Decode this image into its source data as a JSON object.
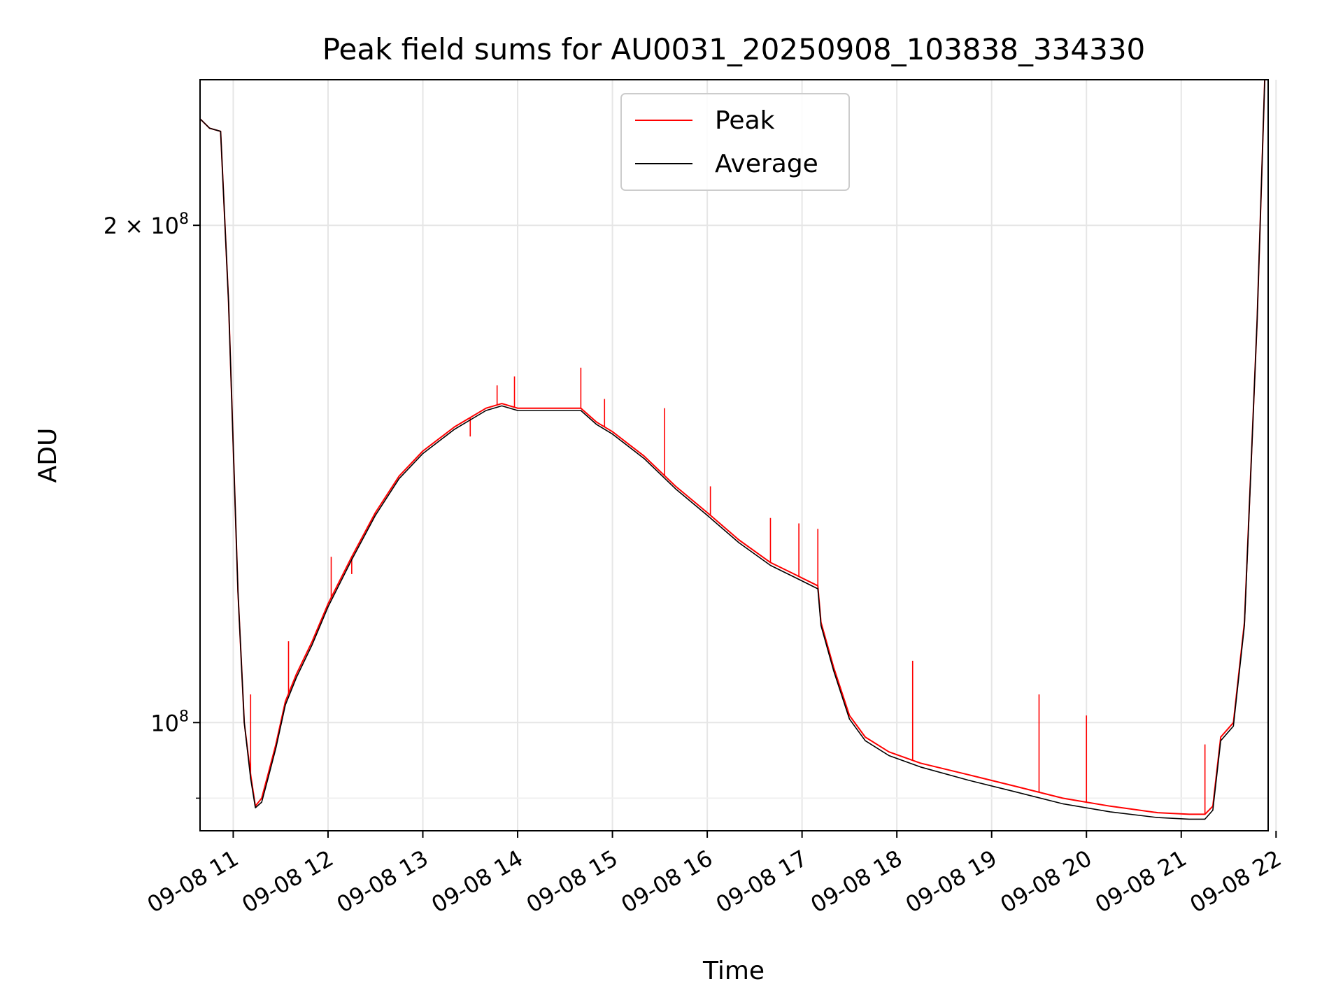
{
  "chart_data": {
    "type": "line",
    "title": "Peak field sums for AU0031_20250908_103838_334330",
    "xlabel": "Time",
    "ylabel": "ADU",
    "xlim": [
      "2025-09-08T10:39",
      "2025-09-08T21:55"
    ],
    "ylim": [
      86000000,
      245000000
    ],
    "yscale": "log",
    "grid": true,
    "legend_position": "top-center",
    "x_ticks": [
      "09-08 11",
      "09-08 12",
      "09-08 13",
      "09-08 14",
      "09-08 15",
      "09-08 16",
      "09-08 17",
      "09-08 18",
      "09-08 19",
      "09-08 20",
      "09-08 21",
      "09-08 22"
    ],
    "y_ticks": [
      {
        "value": 200000000,
        "base": "2 × 10",
        "exp": "8"
      },
      {
        "value": 100000000,
        "base": "10",
        "exp": "8"
      }
    ],
    "series": [
      {
        "name": "Peak",
        "color": "#ff0000",
        "x": [
          "2025-09-08T10:39",
          "2025-09-08T10:45",
          "2025-09-08T10:52",
          "2025-09-08T10:57",
          "2025-09-08T11:03",
          "2025-09-08T11:07",
          "2025-09-08T11:11",
          "2025-09-08T11:14",
          "2025-09-08T11:18",
          "2025-09-08T11:22",
          "2025-09-08T11:27",
          "2025-09-08T11:33",
          "2025-09-08T11:40",
          "2025-09-08T11:50",
          "2025-09-08T12:00",
          "2025-09-08T12:15",
          "2025-09-08T12:30",
          "2025-09-08T12:45",
          "2025-09-08T13:00",
          "2025-09-08T13:20",
          "2025-09-08T13:40",
          "2025-09-08T13:50",
          "2025-09-08T14:00",
          "2025-09-08T14:20",
          "2025-09-08T14:40",
          "2025-09-08T14:50",
          "2025-09-08T15:00",
          "2025-09-08T15:20",
          "2025-09-08T15:40",
          "2025-09-08T16:00",
          "2025-09-08T16:20",
          "2025-09-08T16:40",
          "2025-09-08T16:55",
          "2025-09-08T17:10",
          "2025-09-08T17:12",
          "2025-09-08T17:20",
          "2025-09-08T17:30",
          "2025-09-08T17:40",
          "2025-09-08T17:55",
          "2025-09-08T18:15",
          "2025-09-08T18:45",
          "2025-09-08T19:15",
          "2025-09-08T19:45",
          "2025-09-08T20:15",
          "2025-09-08T20:45",
          "2025-09-08T21:05",
          "2025-09-08T21:15",
          "2025-09-08T21:20",
          "2025-09-08T21:25",
          "2025-09-08T21:33",
          "2025-09-08T21:40",
          "2025-09-08T21:48",
          "2025-09-08T21:53"
        ],
        "values": [
          232000000,
          229000000,
          228000000,
          180000000,
          120000000,
          100000000,
          93000000,
          89000000,
          90000000,
          93000000,
          97000000,
          103000000,
          107000000,
          112000000,
          118000000,
          126000000,
          134000000,
          141000000,
          146000000,
          151000000,
          155000000,
          156000000,
          155000000,
          155000000,
          155000000,
          152000000,
          150000000,
          145000000,
          139000000,
          134000000,
          129000000,
          125000000,
          123000000,
          121000000,
          115000000,
          108000000,
          101000000,
          98000000,
          96000000,
          94500000,
          93000000,
          91500000,
          90000000,
          89000000,
          88200000,
          88000000,
          88000000,
          89000000,
          98000000,
          100000000,
          115000000,
          175000000,
          248000000
        ],
        "spikes": [
          {
            "x": "2025-09-08T11:11",
            "value": 104000000
          },
          {
            "x": "2025-09-08T11:35",
            "value": 112000000
          },
          {
            "x": "2025-09-08T12:02",
            "value": 126000000
          },
          {
            "x": "2025-09-08T12:15",
            "value": 123000000
          },
          {
            "x": "2025-09-08T13:30",
            "value": 149000000
          },
          {
            "x": "2025-09-08T13:47",
            "value": 160000000
          },
          {
            "x": "2025-09-08T13:58",
            "value": 162000000
          },
          {
            "x": "2025-09-08T14:40",
            "value": 164000000
          },
          {
            "x": "2025-09-08T14:55",
            "value": 157000000
          },
          {
            "x": "2025-09-08T15:33",
            "value": 155000000
          },
          {
            "x": "2025-09-08T16:02",
            "value": 139000000
          },
          {
            "x": "2025-09-08T16:40",
            "value": 133000000
          },
          {
            "x": "2025-09-08T16:58",
            "value": 132000000
          },
          {
            "x": "2025-09-08T17:10",
            "value": 131000000
          },
          {
            "x": "2025-09-08T18:10",
            "value": 109000000
          },
          {
            "x": "2025-09-08T19:30",
            "value": 104000000
          },
          {
            "x": "2025-09-08T20:00",
            "value": 101000000
          },
          {
            "x": "2025-09-08T21:15",
            "value": 97000000
          }
        ]
      },
      {
        "name": "Average",
        "color": "#000000",
        "x": [
          "2025-09-08T10:39",
          "2025-09-08T10:45",
          "2025-09-08T10:52",
          "2025-09-08T10:57",
          "2025-09-08T11:03",
          "2025-09-08T11:07",
          "2025-09-08T11:11",
          "2025-09-08T11:14",
          "2025-09-08T11:18",
          "2025-09-08T11:22",
          "2025-09-08T11:27",
          "2025-09-08T11:33",
          "2025-09-08T11:40",
          "2025-09-08T11:50",
          "2025-09-08T12:00",
          "2025-09-08T12:15",
          "2025-09-08T12:30",
          "2025-09-08T12:45",
          "2025-09-08T13:00",
          "2025-09-08T13:20",
          "2025-09-08T13:40",
          "2025-09-08T13:50",
          "2025-09-08T14:00",
          "2025-09-08T14:20",
          "2025-09-08T14:40",
          "2025-09-08T14:50",
          "2025-09-08T15:00",
          "2025-09-08T15:20",
          "2025-09-08T15:40",
          "2025-09-08T16:00",
          "2025-09-08T16:20",
          "2025-09-08T16:40",
          "2025-09-08T16:55",
          "2025-09-08T17:10",
          "2025-09-08T17:12",
          "2025-09-08T17:20",
          "2025-09-08T17:30",
          "2025-09-08T17:40",
          "2025-09-08T17:55",
          "2025-09-08T18:15",
          "2025-09-08T18:45",
          "2025-09-08T19:15",
          "2025-09-08T19:45",
          "2025-09-08T20:15",
          "2025-09-08T20:45",
          "2025-09-08T21:05",
          "2025-09-08T21:15",
          "2025-09-08T21:20",
          "2025-09-08T21:25",
          "2025-09-08T21:33",
          "2025-09-08T21:40",
          "2025-09-08T21:48",
          "2025-09-08T21:53"
        ],
        "values": [
          232000000,
          229000000,
          228000000,
          180000000,
          120000000,
          100000000,
          92500000,
          88800000,
          89500000,
          92500000,
          96500000,
          102500000,
          106500000,
          111500000,
          117500000,
          125500000,
          133500000,
          140500000,
          145500000,
          150500000,
          154500000,
          155500000,
          154500000,
          154500000,
          154500000,
          151500000,
          149500000,
          144500000,
          138500000,
          133500000,
          128500000,
          124500000,
          122500000,
          120500000,
          114500000,
          107500000,
          100500000,
          97500000,
          95500000,
          94000000,
          92300000,
          90800000,
          89300000,
          88300000,
          87600000,
          87400000,
          87400000,
          88500000,
          97500000,
          99500000,
          114500000,
          175000000,
          248000000
        ]
      }
    ]
  }
}
